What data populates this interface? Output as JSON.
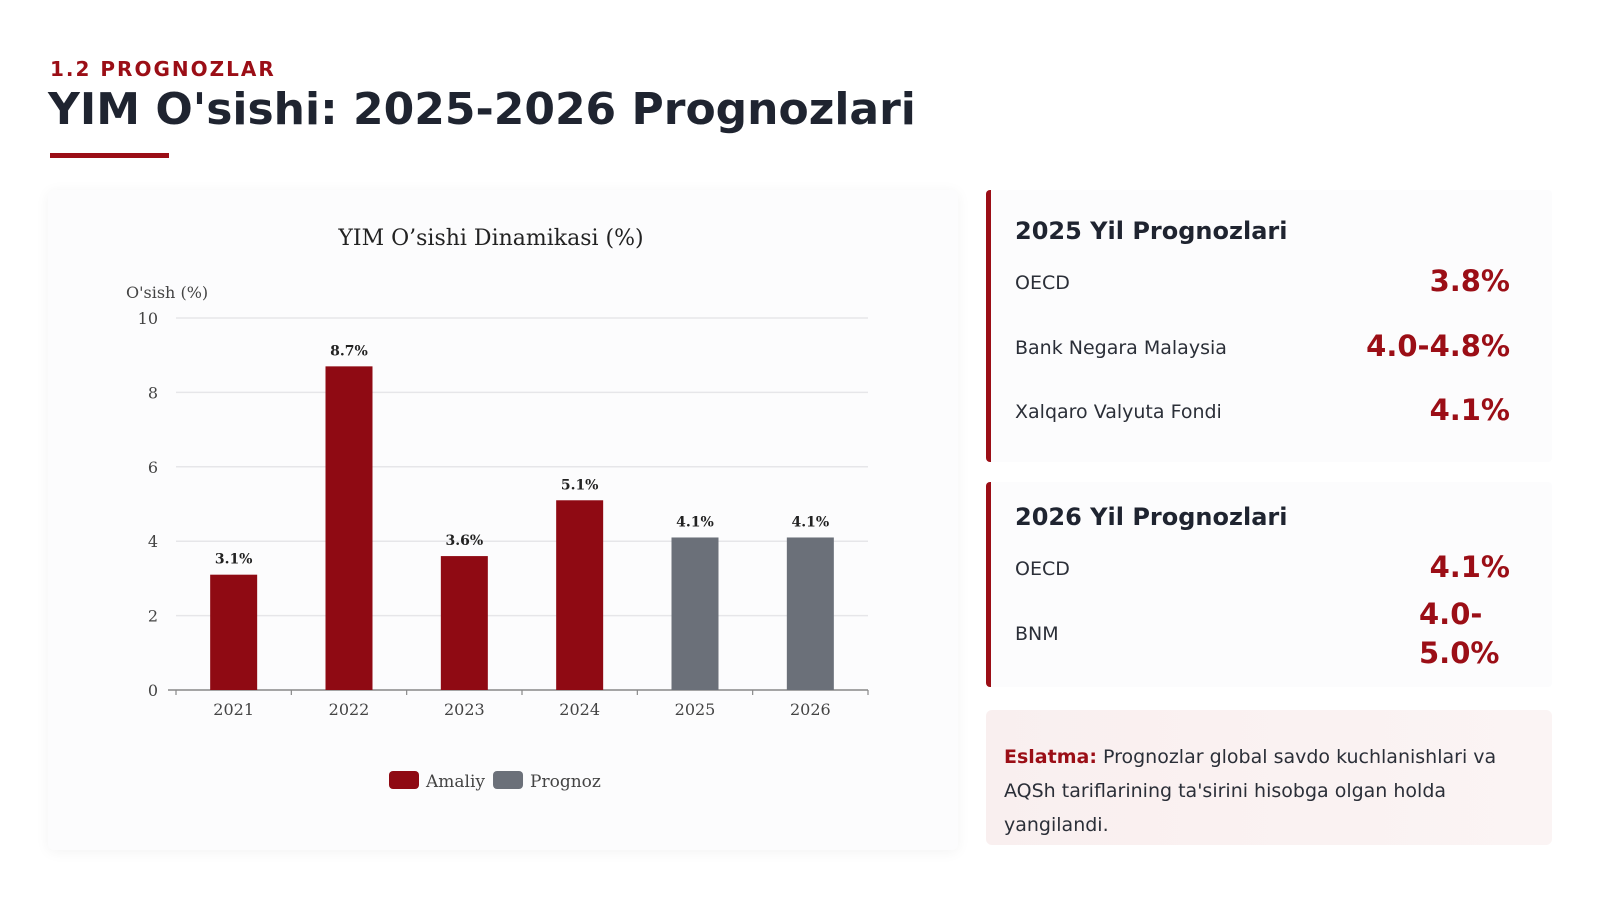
{
  "header": {
    "eyebrow": "1.2 PROGNOZLAR",
    "title": "YIM O'sishi: 2025-2026 Prognozlari"
  },
  "colors": {
    "accent": "#9b0e16",
    "actual": "#8f0a13",
    "forecast": "#6b7079"
  },
  "chart_data": {
    "type": "bar",
    "title": "YIM O’sishi Dinamikasi (%)",
    "ylabel": "O'sish (%)",
    "xlabel": "",
    "ylim": [
      0,
      10
    ],
    "yticks": [
      0,
      2,
      4,
      6,
      8,
      10
    ],
    "grid": true,
    "categories": [
      "2021",
      "2022",
      "2023",
      "2024",
      "2025",
      "2026"
    ],
    "series": [
      {
        "name": "Amaliy",
        "values": [
          3.1,
          8.7,
          3.6,
          5.1,
          null,
          null
        ],
        "labels": [
          "3.1%",
          "8.7%",
          "3.6%",
          "5.1%",
          "",
          ""
        ]
      },
      {
        "name": "Prognoz",
        "values": [
          null,
          null,
          null,
          null,
          4.1,
          4.1
        ],
        "labels": [
          "",
          "",
          "",
          "",
          "4.1%",
          "4.1%"
        ]
      }
    ],
    "legend": "bottom"
  },
  "forecast_2025": {
    "title": "2025 Yil Prognozlari",
    "rows": [
      {
        "label": "OECD",
        "value": "3.8%"
      },
      {
        "label": "Bank Negara Malaysia",
        "value": "4.0-4.8%"
      },
      {
        "label": "Xalqaro Valyuta Fondi",
        "value": "4.1%"
      }
    ]
  },
  "forecast_2026": {
    "title": "2026 Yil Prognozlari",
    "rows": [
      {
        "label": "OECD",
        "value": "4.1%"
      },
      {
        "label": "BNM",
        "value": "4.0-5.0%"
      }
    ]
  },
  "note": {
    "label": "Eslatma:",
    "text": "Prognozlar global savdo kuchlanishlari va AQSh tariflarining ta'sirini hisobga olgan holda yangilandi."
  }
}
